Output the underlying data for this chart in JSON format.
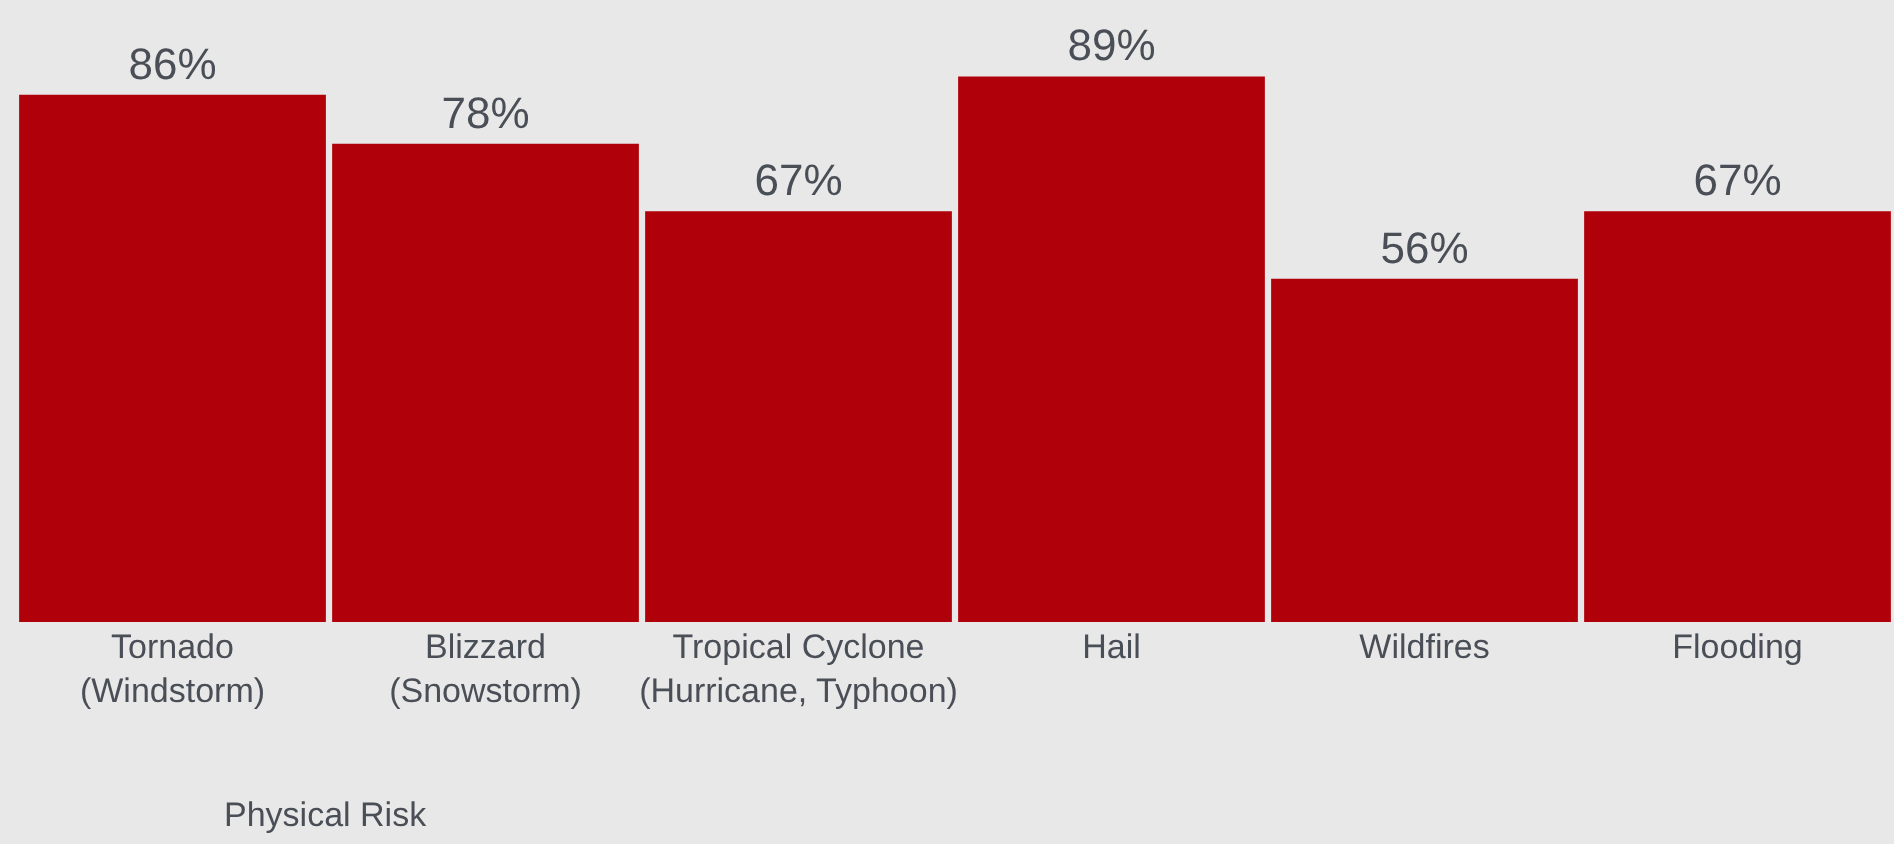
{
  "chart_data": {
    "type": "bar",
    "categories": [
      "Tornado (Windstorm)",
      "Blizzard (Snowstorm)",
      "Tropical Cyclone (Hurricane, Typhoon)",
      "Hail",
      "Wildfires",
      "Flooding"
    ],
    "values": [
      86,
      78,
      67,
      89,
      56,
      67
    ],
    "value_labels": [
      "86%",
      "78%",
      "67%",
      "89%",
      "56%",
      "67%"
    ],
    "color": "#b0000a",
    "annotations": [
      "Physical Risk"
    ],
    "grid": false,
    "legend": false
  }
}
